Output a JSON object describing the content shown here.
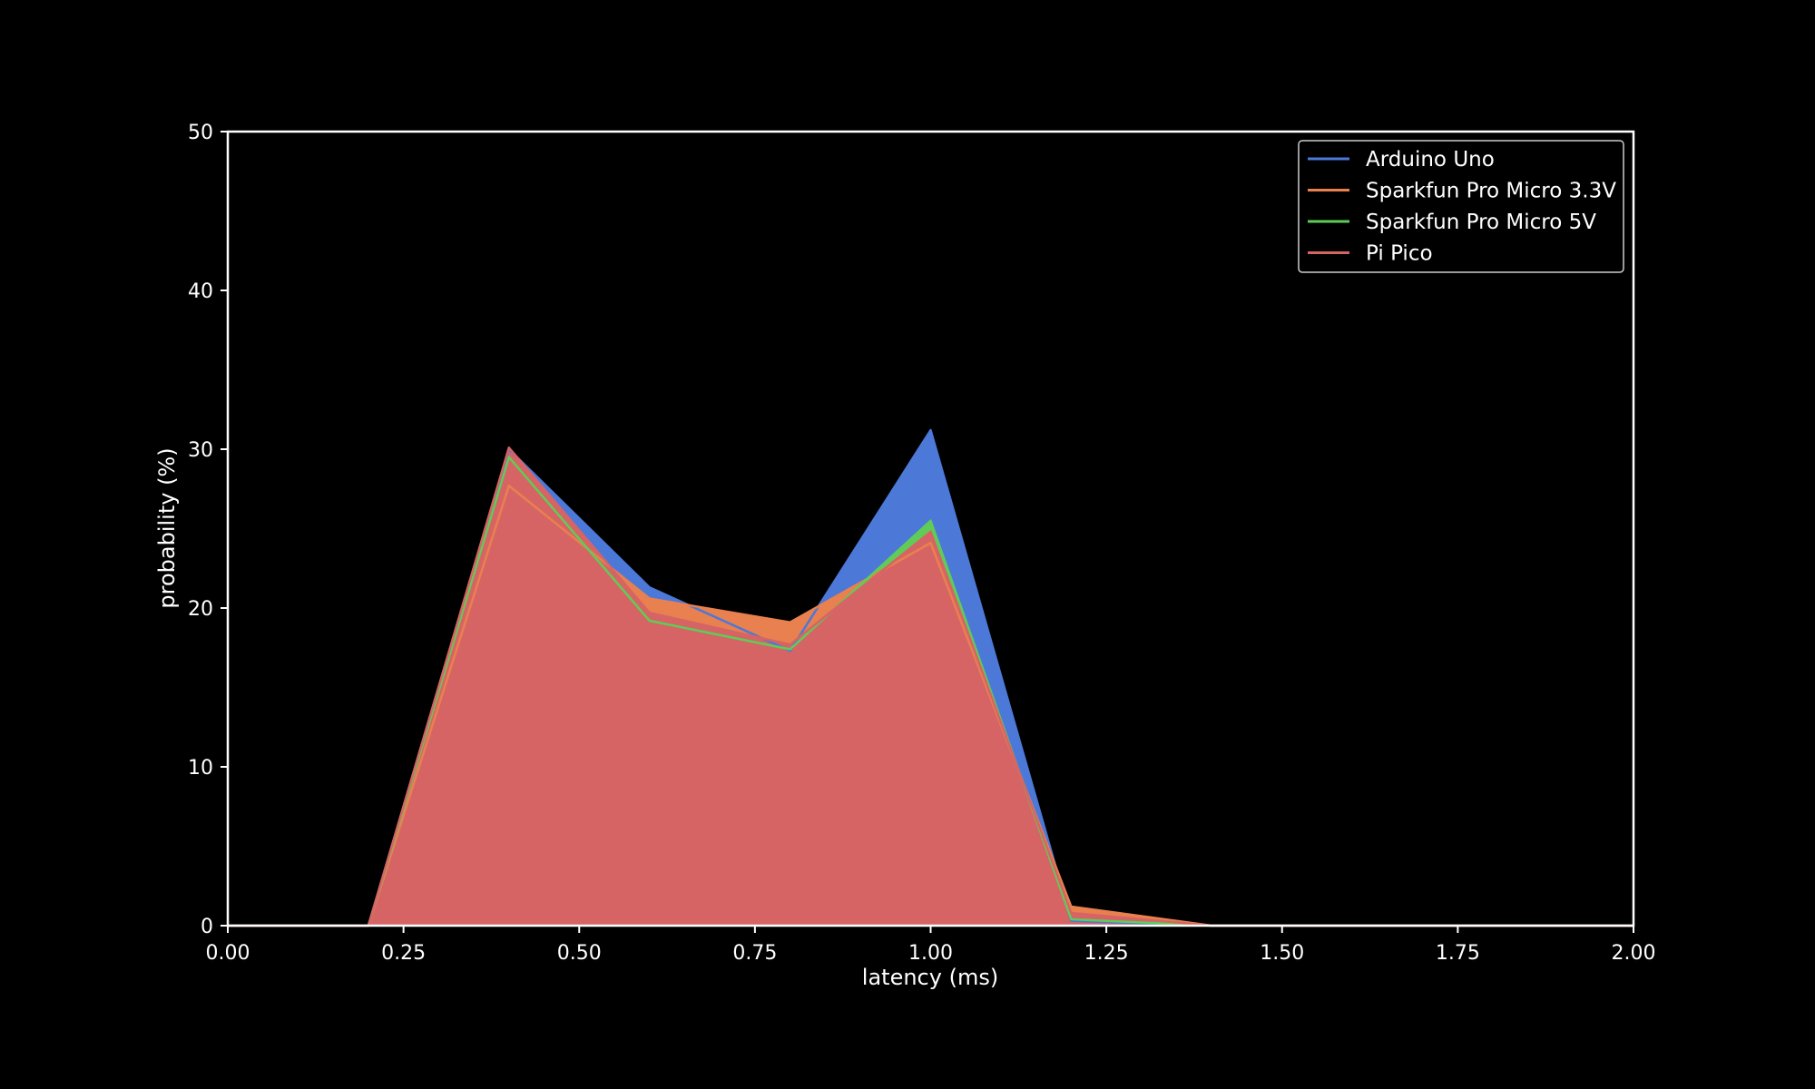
{
  "chart_data": {
    "type": "area",
    "title": "",
    "xlabel": "latency (ms)",
    "ylabel": "probability (%)",
    "xlim": [
      0,
      2
    ],
    "ylim": [
      0,
      50
    ],
    "xticks": [
      "0.00",
      "0.25",
      "0.50",
      "0.75",
      "1.00",
      "1.25",
      "1.50",
      "1.75",
      "2.00"
    ],
    "yticks": [
      "0",
      "10",
      "20",
      "30",
      "40",
      "50"
    ],
    "grid": false,
    "legend_position": "top-right",
    "x": [
      0.0,
      0.2,
      0.4,
      0.6,
      0.8,
      1.0,
      1.2,
      1.4,
      1.6,
      1.8,
      2.0
    ],
    "series": [
      {
        "name": "Arduino Uno",
        "color": "#4c78d8",
        "values": [
          0,
          0,
          30.0,
          21.3,
          17.3,
          31.2,
          0.3,
          0,
          0,
          0,
          0
        ]
      },
      {
        "name": "Sparkfun Pro Micro 3.3V",
        "color": "#e8804f",
        "values": [
          0,
          0,
          27.7,
          20.6,
          19.1,
          24.1,
          1.2,
          0,
          0,
          0,
          0
        ]
      },
      {
        "name": "Sparkfun Pro Micro 5V",
        "color": "#5fcc58",
        "values": [
          0,
          0,
          29.5,
          19.2,
          17.4,
          25.5,
          0.4,
          0,
          0,
          0,
          0
        ]
      },
      {
        "name": "Pi Pico",
        "color": "#d76464",
        "values": [
          0,
          0,
          30.1,
          19.7,
          17.7,
          24.8,
          0.8,
          0,
          0,
          0,
          0
        ]
      }
    ]
  }
}
